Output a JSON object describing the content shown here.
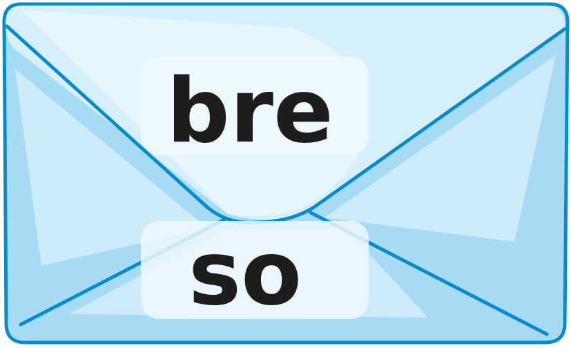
{
  "envelope": {
    "top_syllable": "bre",
    "bottom_syllable": "so"
  },
  "colors": {
    "outline": "#0a8bc9",
    "envelope_base": "#a7dbf5",
    "envelope_light": "#d2ecfa",
    "envelope_highlight": "#e6f5fd",
    "label_background": "#eef8fe",
    "text": "#1d1d1b"
  }
}
